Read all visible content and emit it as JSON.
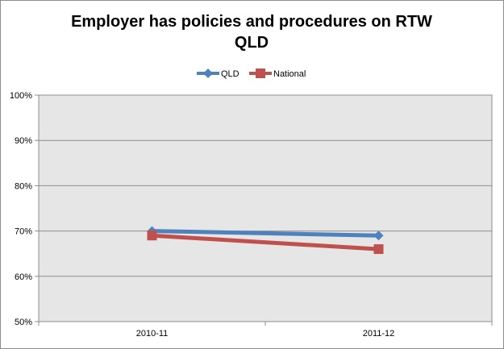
{
  "chart_data": {
    "type": "line",
    "title_lines": [
      "Employer has policies and procedures on RTW",
      "QLD"
    ],
    "categories": [
      "2010-11",
      "2011-12"
    ],
    "series": [
      {
        "name": "QLD",
        "values": [
          70,
          69
        ],
        "color": "#4f81bd",
        "marker": "diamond"
      },
      {
        "name": "National",
        "values": [
          69,
          66
        ],
        "color": "#c0504d",
        "marker": "square"
      }
    ],
    "ylim": [
      50,
      100
    ],
    "yticks": [
      50,
      60,
      70,
      80,
      90,
      100
    ],
    "ytick_labels": [
      "50%",
      "60%",
      "70%",
      "80%",
      "90%",
      "100%"
    ],
    "grid": true,
    "plot_background": "#e6e6e6",
    "legend_position": "top"
  }
}
